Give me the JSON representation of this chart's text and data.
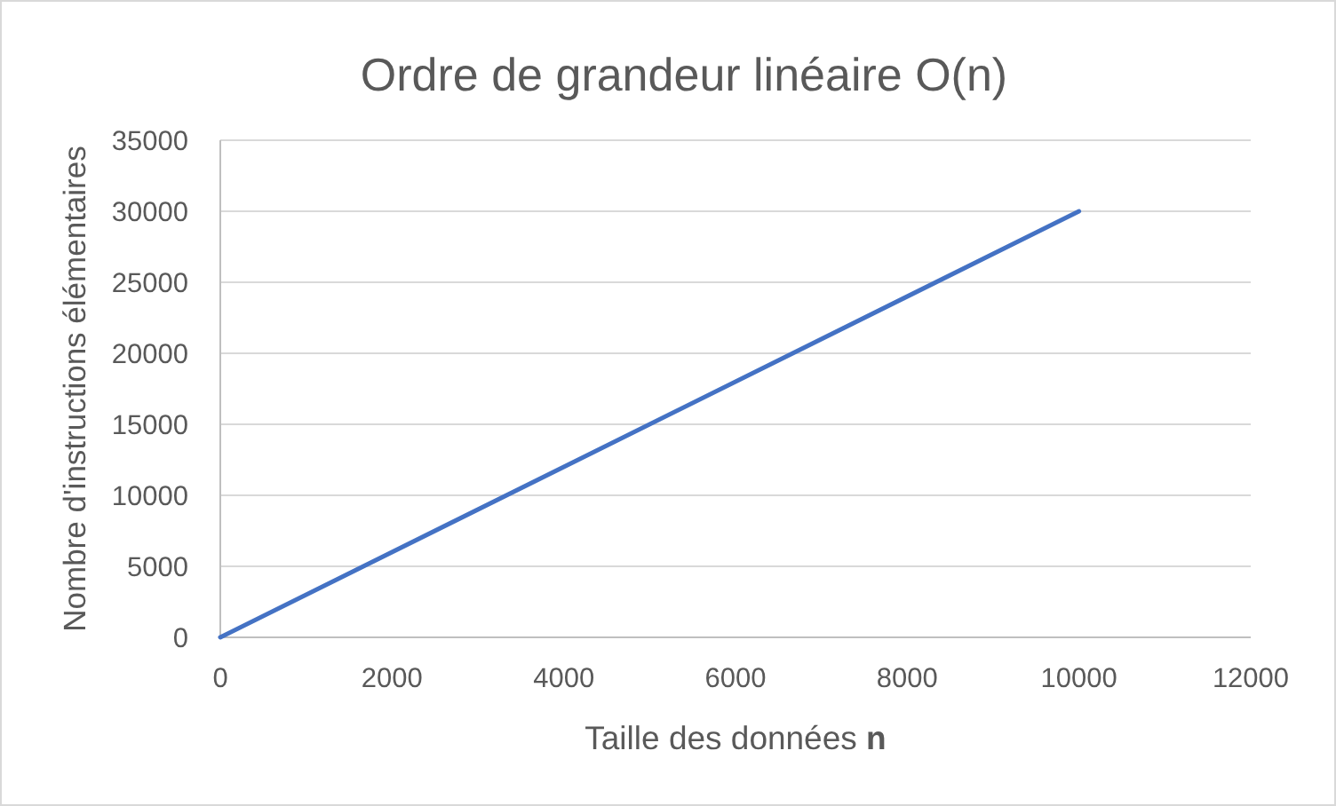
{
  "chart_data": {
    "type": "line",
    "title": "Ordre de grandeur linéaire O(n)",
    "xlabel": "Taille des données n",
    "ylabel": "Nombre d'instructions élémentaires",
    "x": [
      0,
      10000
    ],
    "series": [
      {
        "color": "#4472c4",
        "values": [
          0,
          30000
        ]
      }
    ],
    "xlim": [
      0,
      12000
    ],
    "xticks": [
      0,
      2000,
      4000,
      6000,
      8000,
      10000,
      12000
    ],
    "ylim": [
      0,
      35000
    ],
    "yticks": [
      0,
      5000,
      10000,
      15000,
      20000,
      25000,
      30000,
      35000
    ],
    "grid": "y",
    "marker": "none",
    "line_style": "solid"
  }
}
